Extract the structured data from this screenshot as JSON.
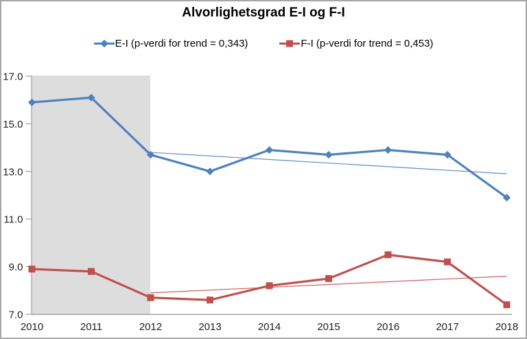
{
  "chart_data": {
    "type": "line",
    "title": "Alvorlighetsgrad E-I og F-I",
    "x": [
      2010,
      2011,
      2012,
      2013,
      2014,
      2015,
      2016,
      2017,
      2018
    ],
    "xtick_labels": [
      "2010",
      "2011",
      "2012",
      "2013",
      "2014",
      "2015",
      "2016",
      "2017",
      "2018"
    ],
    "series": [
      {
        "name": "E-I",
        "legend_label": "E-I (p-verdi for trend = 0,343)",
        "p_value_for_trend": "0,343",
        "color": "#4F81BD",
        "marker": "diamond",
        "values": [
          15.9,
          16.1,
          13.7,
          13.0,
          13.9,
          13.7,
          13.9,
          13.7,
          11.9
        ],
        "trendline": {
          "x_start": 2012,
          "x_end": 2018,
          "value_start": 13.8,
          "value_end": 12.9
        }
      },
      {
        "name": "F-I",
        "legend_label": "F-I (p-verdi for trend = 0,453)",
        "p_value_for_trend": "0,453",
        "color": "#C0504D",
        "marker": "square",
        "values": [
          8.9,
          8.8,
          7.7,
          7.6,
          8.2,
          8.5,
          9.5,
          9.2,
          7.4
        ],
        "trendline": {
          "x_start": 2012,
          "x_end": 2018,
          "value_start": 7.9,
          "value_end": 8.6
        }
      }
    ],
    "ylim": [
      7.0,
      17.0
    ],
    "yticks": [
      17.0,
      15.0,
      13.0,
      11.0,
      9.0,
      7.0
    ],
    "ytick_labels": [
      "17.0",
      "15.0",
      "13.0",
      "11.0",
      "9.0",
      "7.0"
    ],
    "grid": false,
    "legend_position": "top-center",
    "shaded_region": {
      "x_start": 2010,
      "x_end": 2012,
      "color": "#DDDDDD"
    },
    "axis_color": "#A6A6A6",
    "text_color": "#1F1F1F",
    "background_color": "#FFFFFF",
    "border_color": "#A6A6A6"
  }
}
